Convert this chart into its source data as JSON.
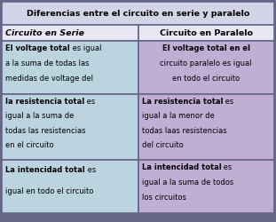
{
  "title": "Diferencias entre el circuito en serie y paralelo",
  "title_bg": "#d4d4e8",
  "header_serie": "Circuito en Serie",
  "header_paralelo": "Circuito en Paralelo",
  "header_bg": "#e8e8f4",
  "col1_bg": "#bcd4e0",
  "col2_bg": "#c0aed4",
  "border_color": "#666688",
  "figsize": [
    3.11,
    2.5
  ],
  "dpi": 100,
  "cells": [
    {
      "col1_lines": [
        [
          "El voltage total",
          " es igual"
        ],
        [
          "a la suma de todas las"
        ],
        [
          "medidas de voltage del"
        ]
      ],
      "col1_bold_idx": [
        0
      ],
      "col2_lines": [
        [
          "El voltage total",
          " en el"
        ],
        [
          "circuito paralelo es igual"
        ],
        [
          "en todo el circuito"
        ]
      ],
      "col2_bold_idx": [
        0
      ],
      "col2_align": "center"
    },
    {
      "col1_lines": [
        [
          "la resistencia total",
          " es"
        ],
        [
          "igual a la suma de"
        ],
        [
          "todas las resistencias"
        ],
        [
          "en el circuito"
        ]
      ],
      "col1_bold_idx": [
        0
      ],
      "col2_lines": [
        [
          "La resistencia total",
          " es"
        ],
        [
          "igual a la menor de"
        ],
        [
          "todas laas resistencias"
        ],
        [
          "del circuito"
        ]
      ],
      "col2_bold_idx": [
        0
      ],
      "col2_align": "left"
    },
    {
      "col1_lines": [
        [
          "La intencidad total",
          " es"
        ],
        [
          "igual en todo el circuito"
        ]
      ],
      "col1_bold_idx": [
        0
      ],
      "col2_lines": [
        [
          "La intencidad total",
          " es"
        ],
        [
          "igual a la suma de todos"
        ],
        [
          "los circuitos"
        ]
      ],
      "col2_bold_idx": [
        0
      ],
      "col2_align": "left"
    }
  ]
}
